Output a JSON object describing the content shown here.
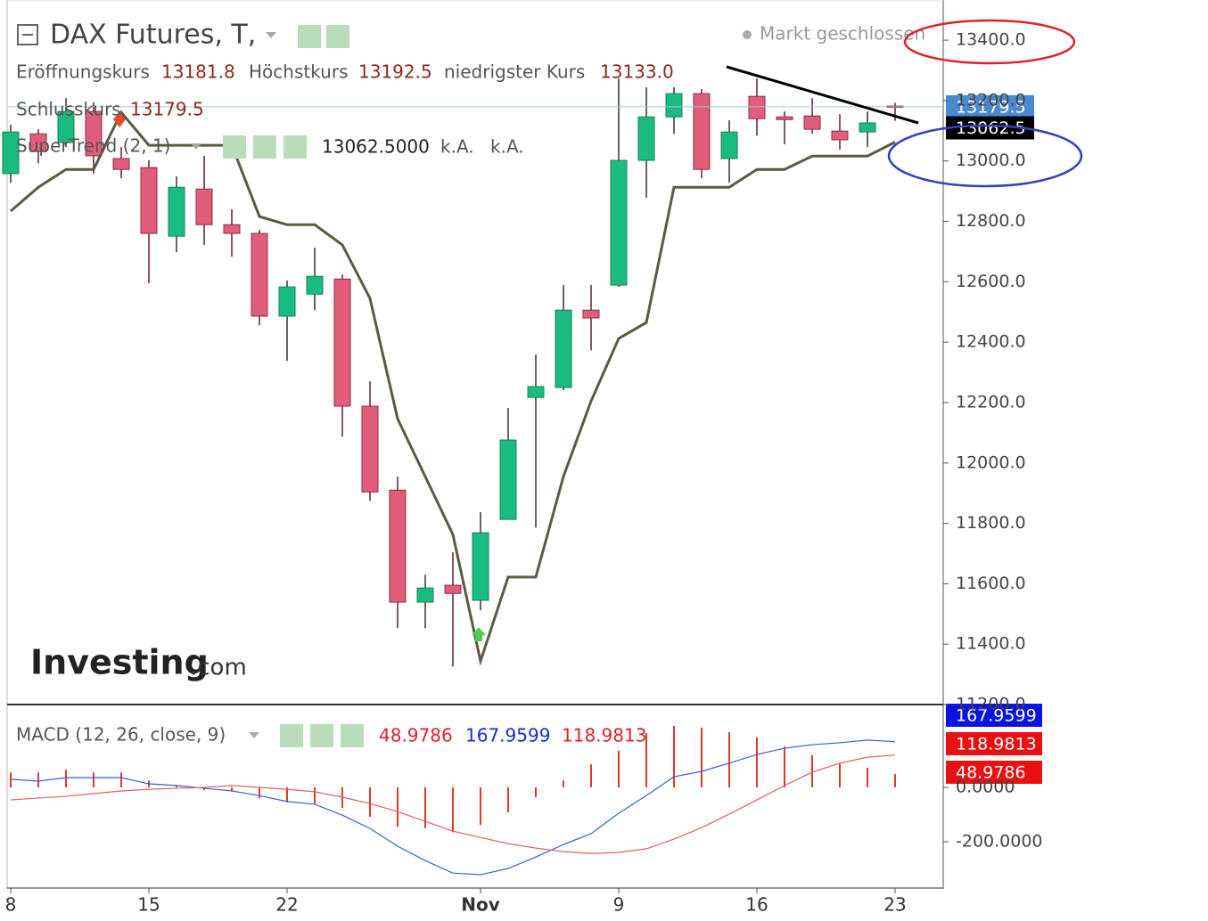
{
  "header": {
    "title": "DAX Futures, T,",
    "status": "Markt geschlossen",
    "logo": [
      "Investing",
      ".com"
    ],
    "ohlc": [
      {
        "label": "Eröffnungskurs",
        "value": "13181.8"
      },
      {
        "label": "Höchstkurs",
        "value": "13192.5"
      },
      {
        "label": "niedrigster Kurs",
        "value": "13133.0"
      },
      {
        "label": "Schlusskurs",
        "value": "13179.5"
      }
    ]
  },
  "chart_data": [
    {
      "type": "candlestick",
      "categories": [
        "8",
        null,
        null,
        null,
        null,
        "15",
        null,
        null,
        null,
        null,
        "22",
        null,
        null,
        null,
        null,
        null,
        null,
        "Nov",
        null,
        null,
        null,
        null,
        "9",
        null,
        null,
        null,
        null,
        "16",
        null,
        null,
        null,
        null,
        "23"
      ],
      "open": [
        12958,
        13090,
        13061,
        13164,
        13008,
        12978,
        12751,
        12907,
        12789,
        12760,
        12486,
        12559,
        12609,
        12188,
        11910,
        11539,
        11595,
        11545,
        11813,
        12217,
        12250,
        12506,
        12589,
        13002,
        13146,
        13223,
        13008,
        13214,
        13146,
        13149,
        13099,
        13096,
        13181.8
      ],
      "high": [
        13120,
        13105,
        13208,
        13194,
        13046,
        13002,
        12949,
        13017,
        12840,
        12772,
        12604,
        12713,
        12624,
        12270,
        11955,
        11630,
        11704,
        11837,
        12182,
        12359,
        12589,
        12589,
        13273,
        13244,
        13244,
        13238,
        13135,
        13273,
        13164,
        13208,
        13155,
        13164,
        13192.5
      ],
      "low": [
        12928,
        12992,
        13046,
        12958,
        12943,
        12595,
        12698,
        12722,
        12683,
        12456,
        12338,
        12506,
        12087,
        11875,
        11453,
        11453,
        11326,
        11512,
        11813,
        11786,
        12241,
        12373,
        12583,
        12878,
        13090,
        12943,
        12928,
        13084,
        13055,
        13090,
        13037,
        13046,
        13133
      ],
      "close": [
        13096,
        13031,
        13164,
        13017,
        12972,
        12760,
        12913,
        12789,
        12760,
        12486,
        12583,
        12618,
        12188,
        11904,
        11539,
        11586,
        11568,
        11769,
        12076,
        12253,
        12506,
        12480,
        13002,
        13146,
        13223,
        12972,
        13096,
        13140,
        13137,
        13105,
        13070,
        13126,
        13179.5
      ],
      "up_color": "#19bb80",
      "down_color": "#e15d7a",
      "overlays": [
        {
          "name": "SuperTrend (2, 1)",
          "color": "#5b5a44",
          "legend_labels": [
            "13062.5000",
            "k.A.",
            "k.A."
          ],
          "values": [
            12834,
            12913,
            12972,
            12972,
            13161,
            13052,
            13052,
            13052,
            13052,
            12816,
            12789,
            12789,
            12722,
            12545,
            12146,
            11955,
            11763,
            11344,
            11622,
            11622,
            11955,
            12205,
            12412,
            12465,
            12913,
            12913,
            12913,
            12972,
            12972,
            13016,
            13016,
            13016,
            13062.5
          ]
        }
      ],
      "ylim": [
        11200,
        13533
      ],
      "yticks": [
        {
          "value": 11200,
          "label": "11200.0"
        },
        {
          "value": 11400,
          "label": "11400.0"
        },
        {
          "value": 11600,
          "label": "11600.0"
        },
        {
          "value": 11800,
          "label": "11800.0"
        },
        {
          "value": 12000,
          "label": "12000.0"
        },
        {
          "value": 12200,
          "label": "12200.0"
        },
        {
          "value": 12400,
          "label": "12400.0"
        },
        {
          "value": 12600,
          "label": "12600.0"
        },
        {
          "value": 12800,
          "label": "12800.0"
        },
        {
          "value": 13000,
          "label": "13000.0"
        },
        {
          "value": 13200,
          "label": "13200.0"
        },
        {
          "value": 13400,
          "label": "13400.0"
        }
      ],
      "grid": false
    },
    {
      "type": "macd",
      "title": "MACD (12, 26, close, 9)",
      "series": [
        {
          "color": "#e03a2a",
          "values": [
            55,
            55,
            65,
            55,
            55,
            25,
            5,
            -10,
            -15,
            -40,
            -55,
            -60,
            -75,
            -108,
            -145,
            -150,
            -165,
            -138,
            -92,
            -36,
            26,
            85,
            135,
            200,
            226,
            220,
            203,
            184,
            150,
            118,
            88,
            72,
            48.9786
          ]
        },
        {
          "color": "#3a5fd0",
          "values": [
            30,
            23,
            36,
            36,
            36,
            13,
            7,
            -3,
            -13,
            -30,
            -52,
            -62,
            -102,
            -151,
            -216,
            -269,
            -315,
            -321,
            -298,
            -256,
            -210,
            -170,
            -95,
            -30,
            39,
            59,
            89,
            121,
            144,
            157,
            164,
            174,
            167.9599
          ]
        },
        {
          "color": "#e06060",
          "values": [
            -46,
            -39,
            -33,
            -23,
            -13,
            -7,
            -3,
            0,
            7,
            0,
            -7,
            -16,
            -36,
            -59,
            -89,
            -125,
            -161,
            -184,
            -207,
            -223,
            -236,
            -243,
            -239,
            -226,
            -190,
            -148,
            -98,
            -46,
            7,
            56,
            89,
            111,
            118.9813
          ]
        }
      ],
      "ylim": [
        -370,
        298
      ],
      "yticks": [
        {
          "value": -200,
          "label": "-200.0000"
        },
        {
          "value": 0,
          "label": "0.0000"
        }
      ],
      "grid": false
    }
  ]
}
